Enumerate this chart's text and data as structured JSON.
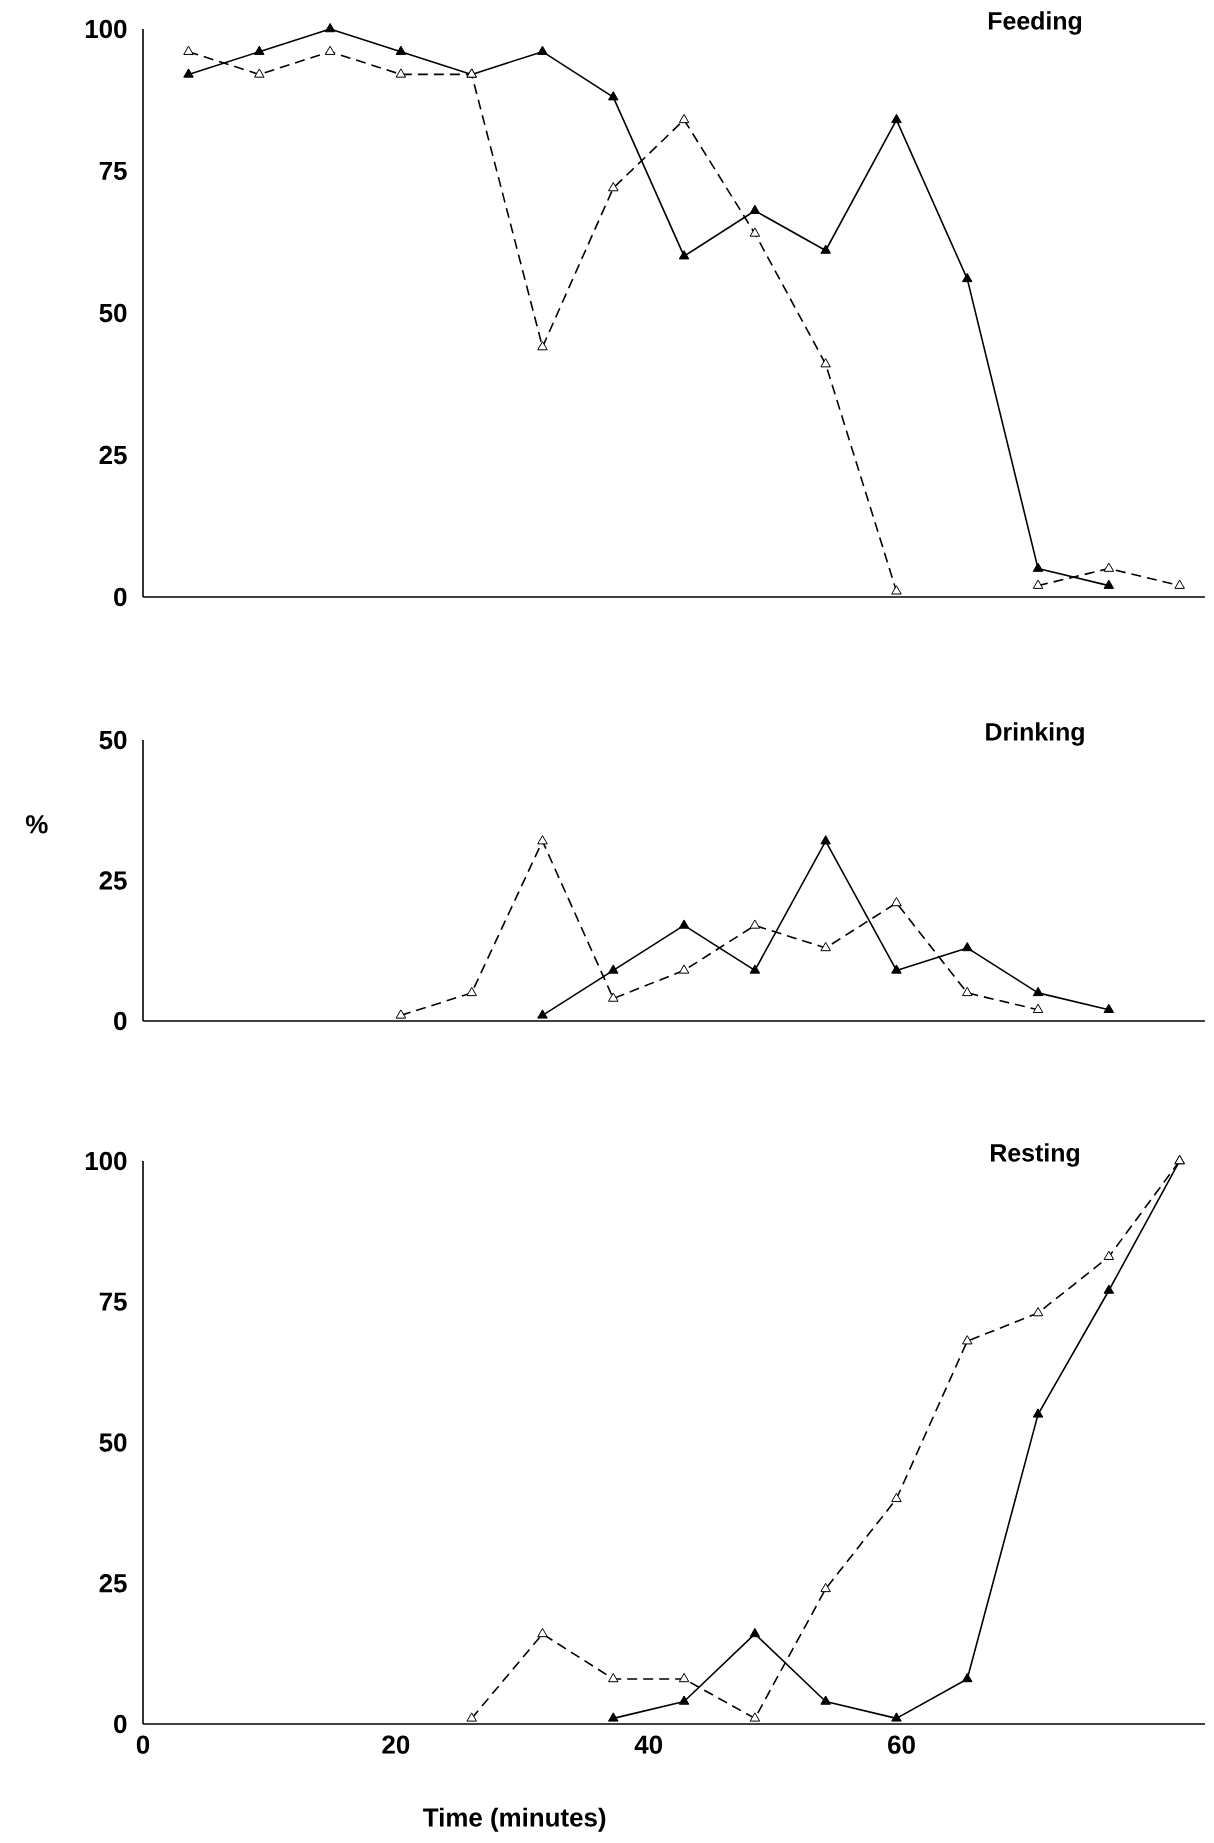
{
  "chart_data": [
    {
      "type": "line",
      "title": "Feeding",
      "x": [
        3.6,
        9.2,
        14.8,
        20.4,
        26.0,
        31.6,
        37.2,
        42.8,
        48.4,
        54.0,
        59.6,
        65.2,
        70.8,
        76.4,
        82.0
      ],
      "xlim": [
        0,
        84
      ],
      "ylim": [
        0,
        100
      ],
      "yticks": [
        0,
        25,
        50,
        75,
        100
      ],
      "tick_labels": "y",
      "marker": "triangle",
      "series": [
        {
          "color": "#000000",
          "line_style": "solid",
          "values": [
            92,
            96,
            100,
            96,
            92,
            96,
            88,
            60,
            68,
            61,
            84,
            56,
            5,
            2,
            null
          ]
        },
        {
          "color": "#000000",
          "line_style": "dashed",
          "values": [
            96,
            92,
            96,
            92,
            92,
            44,
            72,
            84,
            64,
            41,
            1,
            null,
            2,
            5,
            2
          ]
        }
      ]
    },
    {
      "type": "line",
      "title": "Drinking",
      "ylabel": "%",
      "xlim": [
        0,
        84
      ],
      "ylim": [
        0,
        50
      ],
      "yticks": [
        0,
        25,
        50
      ],
      "tick_labels": "y",
      "marker": "triangle",
      "series": [
        {
          "color": "#000000",
          "line_style": "solid",
          "x": [
            31.6,
            37.2,
            42.8,
            48.4,
            54.0,
            59.6,
            65.2,
            70.8,
            76.4
          ],
          "values": [
            1,
            9,
            17,
            9,
            32,
            9,
            13,
            5,
            2
          ]
        },
        {
          "color": "#000000",
          "line_style": "dashed",
          "x": [
            20.4,
            26.0,
            31.6,
            37.2,
            42.8,
            48.4,
            54.0,
            59.6,
            65.2,
            70.8
          ],
          "values": [
            1,
            5,
            32,
            4,
            9,
            17,
            13,
            21,
            5,
            2
          ]
        }
      ]
    },
    {
      "type": "line",
      "title": "Resting",
      "xlabel": "Time (minutes)",
      "xlim": [
        0,
        84
      ],
      "xticks": [
        0,
        20,
        40,
        60
      ],
      "ylim": [
        0,
        100
      ],
      "yticks": [
        0,
        25,
        50,
        75,
        100
      ],
      "marker": "triangle",
      "series": [
        {
          "color": "#000000",
          "line_style": "solid",
          "x": [
            37.2,
            42.8,
            48.4,
            54.0,
            59.6,
            65.2,
            70.8,
            76.4,
            82.0
          ],
          "values": [
            1,
            4,
            16,
            4,
            1,
            8,
            55,
            77,
            100
          ]
        },
        {
          "color": "#000000",
          "line_style": "dashed",
          "x": [
            26.0,
            31.6,
            37.2,
            42.8,
            48.4,
            54.0,
            59.6,
            65.2,
            70.8,
            76.4,
            82.0
          ],
          "values": [
            1,
            16,
            8,
            8,
            1,
            24,
            40,
            68,
            73,
            83,
            100
          ]
        }
      ]
    }
  ]
}
